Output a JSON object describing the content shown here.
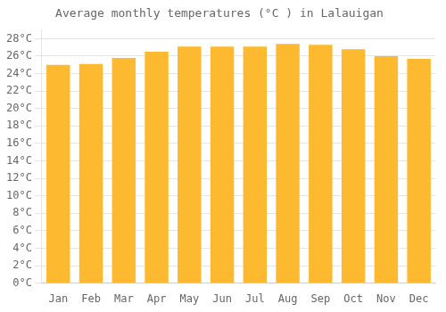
{
  "chart_data": {
    "type": "bar",
    "title": "Average monthly temperatures (°C ) in Lalauigan",
    "categories": [
      "Jan",
      "Feb",
      "Mar",
      "Apr",
      "May",
      "Jun",
      "Jul",
      "Aug",
      "Sep",
      "Oct",
      "Nov",
      "Dec"
    ],
    "values": [
      25.0,
      25.1,
      25.8,
      26.5,
      27.1,
      27.1,
      27.1,
      27.4,
      27.3,
      26.8,
      26.0,
      25.7
    ],
    "color": "#FDB930",
    "ylim": [
      0,
      29
    ],
    "yticks": [
      {
        "value": 0,
        "label": "0°C"
      },
      {
        "value": 2,
        "label": "2°C"
      },
      {
        "value": 4,
        "label": "4°C"
      },
      {
        "value": 6,
        "label": "6°C"
      },
      {
        "value": 8,
        "label": "8°C"
      },
      {
        "value": 10,
        "label": "10°C"
      },
      {
        "value": 12,
        "label": "12°C"
      },
      {
        "value": 14,
        "label": "14°C"
      },
      {
        "value": 16,
        "label": "16°C"
      },
      {
        "value": 18,
        "label": "18°C"
      },
      {
        "value": 20,
        "label": "20°C"
      },
      {
        "value": 22,
        "label": "22°C"
      },
      {
        "value": 24,
        "label": "24°C"
      },
      {
        "value": 26,
        "label": "26°C"
      },
      {
        "value": 28,
        "label": "28°C"
      }
    ],
    "grid": true
  }
}
